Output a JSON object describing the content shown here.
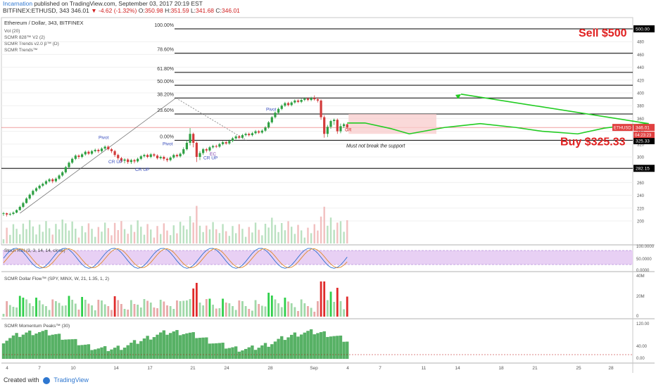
{
  "header": {
    "author": "Incarnation",
    "published": "published on TradingView.com, September 03, 2017 20:19 EST",
    "symbol": "BITFINEX:ETHUSD, 343",
    "last": "346.01",
    "change": "▼ -4.62 (-1.32%)",
    "o_label": "O:",
    "o": "350.98",
    "h_label": "H:",
    "h": "351.59",
    "l_label": "L:",
    "l": "341.68",
    "c_label": "C:",
    "c": "346.01"
  },
  "footer": {
    "created_with": "Created with",
    "brand": "TradingView"
  },
  "colors": {
    "up": "#2ea043",
    "down": "#d23a3a",
    "fib_line": "#000000",
    "sell_text": "#e02020",
    "buy_text": "#e02020",
    "projection": "#22cc22",
    "zone_fill": "#f8cccc",
    "rsi_fill": "#e8d0f4",
    "momentum": "#3aa34a"
  },
  "chart_data": {
    "type": "candlestick",
    "title": "Ethereum / Dollar, 343, BITFINEX",
    "indicators": [
      "Vol (20)",
      "SCMR 828™ V2 (2)",
      "SCMR Trends v2.0 β™ (D)",
      "SCMR Trends™"
    ],
    "price_axis": {
      "range": [
        180,
        508
      ],
      "ticks": [
        200,
        220,
        240,
        260,
        280,
        300,
        320,
        340,
        360,
        380,
        400,
        420,
        440,
        460,
        480
      ]
    },
    "x_axis": {
      "ticks": [
        "4",
        "7",
        "10",
        "14",
        "17",
        "21",
        "24",
        "28",
        "Sep",
        "4",
        "7",
        "11",
        "14",
        "18",
        "21",
        "25",
        "28"
      ]
    },
    "price_labels": {
      "current_symbol": "ETHUSD",
      "current_price": "346.01",
      "countdown": "04:23:23",
      "resistance": "500.00",
      "support": "325.33",
      "lower": "282.15"
    },
    "fib_levels": [
      {
        "label": "100.00%",
        "price": 500
      },
      {
        "label": "78.60%",
        "price": 462
      },
      {
        "label": "61.80%",
        "price": 432
      },
      {
        "label": "50.00%",
        "price": 412
      },
      {
        "label": "38.20%",
        "price": 392
      },
      {
        "label": "23.60%",
        "price": 367
      },
      {
        "label": "0.00%",
        "price": 326
      }
    ],
    "horizontal_levels": [
      282.15
    ],
    "annotations": {
      "sell": "Sell $500",
      "buy": "Buy $325.33",
      "support_note": "Must not break the support",
      "pivot": "Pivot",
      "cr_up": "CR UP",
      "cr": "CR",
      "ec": "EC"
    },
    "candles": [
      [
        212,
        212,
        214,
        208
      ],
      [
        212,
        210,
        213,
        207
      ],
      [
        210,
        211,
        213,
        208
      ],
      [
        211,
        213,
        215,
        209
      ],
      [
        213,
        217,
        218,
        212
      ],
      [
        217,
        222,
        224,
        216
      ],
      [
        222,
        228,
        230,
        220
      ],
      [
        228,
        235,
        237,
        227
      ],
      [
        235,
        241,
        243,
        233
      ],
      [
        241,
        247,
        249,
        239
      ],
      [
        247,
        251,
        253,
        245
      ],
      [
        251,
        255,
        257,
        249
      ],
      [
        255,
        258,
        260,
        253
      ],
      [
        258,
        262,
        264,
        256
      ],
      [
        262,
        265,
        267,
        260
      ],
      [
        265,
        262,
        267,
        259
      ],
      [
        262,
        266,
        268,
        260
      ],
      [
        266,
        271,
        273,
        264
      ],
      [
        271,
        276,
        278,
        269
      ],
      [
        276,
        284,
        286,
        274
      ],
      [
        284,
        291,
        293,
        282
      ],
      [
        291,
        297,
        299,
        289
      ],
      [
        297,
        302,
        304,
        295
      ],
      [
        302,
        300,
        304,
        297
      ],
      [
        300,
        304,
        306,
        298
      ],
      [
        304,
        308,
        310,
        302
      ],
      [
        308,
        305,
        310,
        303
      ],
      [
        305,
        309,
        311,
        303
      ],
      [
        309,
        311,
        313,
        307
      ],
      [
        311,
        309,
        313,
        306
      ],
      [
        309,
        313,
        315,
        307
      ],
      [
        313,
        316,
        318,
        311
      ],
      [
        316,
        312,
        318,
        310
      ],
      [
        312,
        309,
        314,
        306
      ],
      [
        309,
        303,
        311,
        300
      ],
      [
        303,
        298,
        305,
        295
      ],
      [
        298,
        294,
        300,
        291
      ],
      [
        294,
        296,
        298,
        290
      ],
      [
        296,
        292,
        298,
        289
      ],
      [
        292,
        295,
        297,
        289
      ],
      [
        295,
        293,
        297,
        290
      ],
      [
        293,
        297,
        299,
        291
      ],
      [
        297,
        301,
        303,
        295
      ],
      [
        301,
        303,
        305,
        299
      ],
      [
        303,
        300,
        305,
        298
      ],
      [
        300,
        304,
        306,
        298
      ],
      [
        304,
        302,
        306,
        300
      ],
      [
        302,
        298,
        304,
        296
      ],
      [
        298,
        300,
        302,
        296
      ],
      [
        300,
        297,
        302,
        294
      ],
      [
        297,
        295,
        299,
        292
      ],
      [
        295,
        299,
        301,
        293
      ],
      [
        299,
        303,
        305,
        297
      ],
      [
        303,
        301,
        305,
        299
      ],
      [
        301,
        305,
        307,
        299
      ],
      [
        305,
        312,
        315,
        303
      ],
      [
        312,
        322,
        326,
        310
      ],
      [
        322,
        336,
        345,
        318
      ],
      [
        336,
        322,
        338,
        315
      ],
      [
        322,
        300,
        324,
        292
      ],
      [
        300,
        306,
        309,
        295
      ],
      [
        306,
        312,
        314,
        303
      ],
      [
        312,
        310,
        314,
        307
      ],
      [
        310,
        315,
        317,
        308
      ],
      [
        315,
        317,
        319,
        313
      ],
      [
        317,
        316,
        319,
        314
      ],
      [
        316,
        320,
        322,
        314
      ],
      [
        320,
        323,
        325,
        318
      ],
      [
        323,
        321,
        325,
        319
      ],
      [
        321,
        325,
        327,
        319
      ],
      [
        325,
        329,
        331,
        323
      ],
      [
        329,
        332,
        334,
        327
      ],
      [
        332,
        330,
        334,
        328
      ],
      [
        330,
        334,
        336,
        328
      ],
      [
        334,
        336,
        338,
        332
      ],
      [
        336,
        334,
        338,
        332
      ],
      [
        334,
        337,
        339,
        332
      ],
      [
        337,
        340,
        342,
        335
      ],
      [
        340,
        338,
        342,
        336
      ],
      [
        338,
        341,
        343,
        336
      ],
      [
        341,
        346,
        348,
        339
      ],
      [
        346,
        354,
        356,
        344
      ],
      [
        354,
        362,
        364,
        352
      ],
      [
        362,
        369,
        371,
        360
      ],
      [
        369,
        375,
        377,
        367
      ],
      [
        375,
        380,
        382,
        373
      ],
      [
        380,
        384,
        386,
        378
      ],
      [
        384,
        381,
        386,
        379
      ],
      [
        381,
        385,
        387,
        379
      ],
      [
        385,
        388,
        390,
        383
      ],
      [
        388,
        386,
        390,
        384
      ],
      [
        386,
        389,
        391,
        384
      ],
      [
        389,
        391,
        393,
        387
      ],
      [
        391,
        389,
        393,
        387
      ],
      [
        389,
        392,
        394,
        387
      ],
      [
        392,
        390,
        396,
        388
      ],
      [
        390,
        388,
        393,
        385
      ],
      [
        388,
        362,
        390,
        358
      ],
      [
        362,
        336,
        365,
        330
      ],
      [
        336,
        347,
        350,
        331
      ],
      [
        347,
        356,
        358,
        344
      ],
      [
        356,
        358,
        360,
        350
      ],
      [
        358,
        340,
        360,
        336
      ],
      [
        340,
        348,
        352,
        337
      ],
      [
        348,
        351,
        353,
        345
      ],
      [
        351,
        346,
        352,
        341
      ]
    ],
    "projection_path": [
      [
        346,
        353
      ],
      [
        350,
        353
      ],
      [
        356,
        344
      ],
      [
        360,
        336
      ],
      [
        368,
        346
      ],
      [
        376,
        352
      ],
      [
        384,
        346
      ],
      [
        390,
        340
      ],
      [
        398,
        336
      ],
      [
        404,
        345
      ],
      [
        410,
        350
      ],
      [
        414,
        352
      ]
    ],
    "rsi": {
      "label": "Stoch RSI (3, 3, 14, 14, close)",
      "range": [
        0,
        100
      ],
      "ticks": [
        "100.0000",
        "50.0000",
        "0.0000"
      ],
      "bands": [
        80,
        20
      ]
    },
    "money_flow": {
      "label": "SCMR Dollar Flow™ (SPY, MINX, W, 21, 1.35, 1, 2)",
      "ticks": [
        "40M",
        "20M",
        "0"
      ]
    },
    "momentum": {
      "label": "SCMR Momentum Peaks™ (30)",
      "ticks": [
        "120.00",
        "40.00",
        "0.00"
      ]
    }
  }
}
